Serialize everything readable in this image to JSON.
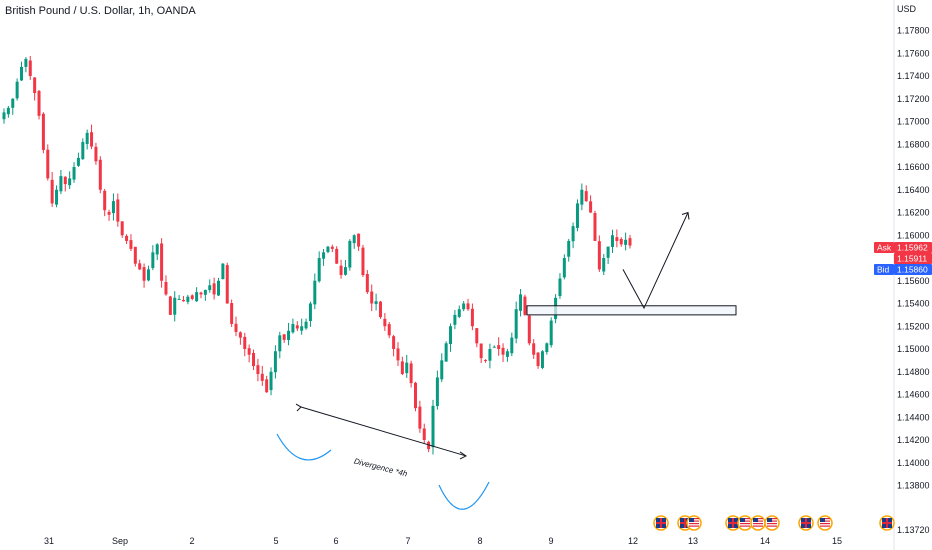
{
  "header": {
    "title": "British Pound / U.S. Dollar, 1h, OANDA"
  },
  "colors": {
    "up": "#089981",
    "down": "#f23645",
    "accent_blue": "#2962ff",
    "arc_blue": "#2196f3",
    "line": "#131722"
  },
  "price_axis": {
    "unit": "USD",
    "ticks": [
      "1.17800",
      "1.17600",
      "1.17400",
      "1.17200",
      "1.17000",
      "1.16800",
      "1.16600",
      "1.16400",
      "1.16200",
      "1.16000",
      "1.15800",
      "1.15600",
      "1.15400",
      "1.15200",
      "1.15000",
      "1.14800",
      "1.14600",
      "1.14400",
      "1.14200",
      "1.14000",
      "1.13800",
      "1.13720"
    ]
  },
  "price_badges": {
    "ask_label": "Ask",
    "ask_value": "1.15962",
    "last_value": "1.15911",
    "bid_label": "Bid",
    "bid_value": "1.15860"
  },
  "time_axis": {
    "labels": [
      "31",
      "Sep",
      "2",
      "5",
      "6",
      "7",
      "8",
      "9",
      "12",
      "13",
      "14",
      "15"
    ]
  },
  "annotations": {
    "divergence": "Divergence *4h"
  },
  "event_icons": [
    "gb-flag-icon",
    "gb-flag-icon",
    "us-flag-icon",
    "gb-flag-icon",
    "us-flag-icon",
    "us-flag-icon",
    "us-flag-icon",
    "gb-flag-icon",
    "us-flag-icon",
    "gb-flag-icon"
  ],
  "chart_data": {
    "type": "candlestick",
    "title": "British Pound / U.S. Dollar, 1h, OANDA",
    "ylim": [
      1.1372,
      1.1792
    ],
    "y_unit": "USD",
    "x_labels": [
      "31",
      "Sep",
      "2",
      "5",
      "6",
      "7",
      "8",
      "9",
      "12",
      "13",
      "14",
      "15"
    ],
    "close_path": [
      1.1708,
      1.1712,
      1.172,
      1.1735,
      1.1748,
      1.1755,
      1.174,
      1.1725,
      1.1705,
      1.1675,
      1.165,
      1.1628,
      1.164,
      1.1652,
      1.1645,
      1.165,
      1.166,
      1.1668,
      1.1682,
      1.169,
      1.1678,
      1.1665,
      1.164,
      1.1622,
      1.1618,
      1.163,
      1.1612,
      1.16,
      1.1595,
      1.1588,
      1.1575,
      1.157,
      1.156,
      1.157,
      1.1585,
      1.1592,
      1.156,
      1.1548,
      1.153,
      1.1545,
      1.1544,
      1.1542,
      1.1546,
      1.1544,
      1.155,
      1.1548,
      1.1552,
      1.1556,
      1.1548,
      1.156,
      1.1575,
      1.154,
      1.1522,
      1.1515,
      1.151,
      1.15,
      1.1495,
      1.1485,
      1.1478,
      1.1472,
      1.1462,
      1.148,
      1.1498,
      1.1512,
      1.1508,
      1.1516,
      1.1522,
      1.1518,
      1.152,
      1.1524,
      1.154,
      1.156,
      1.158,
      1.1585,
      1.159,
      1.1588,
      1.1575,
      1.1565,
      1.1572,
      1.1595,
      1.16,
      1.159,
      1.1565,
      1.155,
      1.154,
      1.1542,
      1.1528,
      1.152,
      1.1512,
      1.15,
      1.149,
      1.1478,
      1.1488,
      1.147,
      1.1448,
      1.143,
      1.142,
      1.1412,
      1.145,
      1.1475,
      1.149,
      1.1505,
      1.152,
      1.153,
      1.1535,
      1.154,
      1.1535,
      1.152,
      1.1505,
      1.1492,
      1.149,
      1.15,
      1.1502,
      1.15,
      1.1495,
      1.1498,
      1.151,
      1.1535,
      1.1548,
      1.153,
      1.1505,
      1.1495,
      1.1485,
      1.1498,
      1.1505,
      1.1525,
      1.1545,
      1.1562,
      1.158,
      1.1595,
      1.1608,
      1.1628,
      1.164,
      1.163,
      1.162,
      1.1595,
      1.157,
      1.158,
      1.159,
      1.16,
      1.1595,
      1.1592,
      1.1596,
      1.1591
    ],
    "last_price": 1.15911,
    "drawings": {
      "support_zone": [
        1.153,
        1.1538
      ],
      "projected_move": [
        1.157,
        1.1536,
        1.162
      ],
      "divergence_line": [
        1.1449,
        1.1406
      ]
    }
  }
}
